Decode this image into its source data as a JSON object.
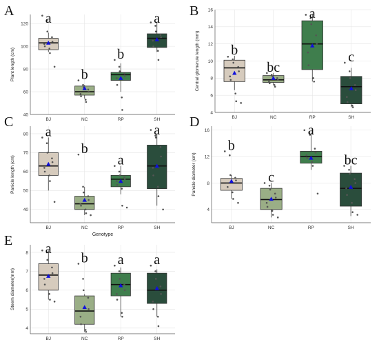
{
  "palette": {
    "BJ": "#d6cbbd",
    "NC": "#9aae86",
    "RP": "#3f7e4d",
    "SH": "#2a4d3c",
    "mean_marker": "#1010dd"
  },
  "chart_data": [
    {
      "panel": "A",
      "type": "box",
      "ylabel": "Plant length (cm)",
      "xlabel": "",
      "ylim": [
        40,
        128
      ],
      "yticks": [
        40,
        60,
        80,
        100,
        120
      ],
      "categories": [
        "BJ",
        "NC",
        "RP",
        "SH"
      ],
      "boxes": [
        {
          "group": "BJ",
          "min": 95,
          "q1": 97,
          "median": 103,
          "q3": 107,
          "max": 112,
          "mean": 103,
          "letter": "a",
          "points": [
            127,
            123,
            113,
            108,
            104,
            102,
            100,
            98,
            94,
            82
          ]
        },
        {
          "group": "NC",
          "min": 54,
          "q1": 57,
          "median": 60,
          "q3": 65,
          "max": 66,
          "mean": 63,
          "letter": "b",
          "points": [
            70,
            66,
            64,
            62,
            60,
            58,
            56,
            53,
            51
          ]
        },
        {
          "group": "RP",
          "min": 60,
          "q1": 70,
          "median": 75,
          "q3": 77,
          "max": 85,
          "mean": 72,
          "letter": "b",
          "points": [
            88,
            82,
            78,
            76,
            74,
            72,
            66,
            55,
            44
          ]
        },
        {
          "group": "SH",
          "min": 95,
          "q1": 99,
          "median": 107,
          "q3": 111,
          "max": 121,
          "mean": 106,
          "letter": "a",
          "points": [
            121,
            118,
            113,
            110,
            108,
            105,
            100,
            96,
            88
          ]
        }
      ]
    },
    {
      "panel": "B",
      "type": "box",
      "ylabel": "Central glomerule length (mm)",
      "xlabel": "",
      "ylim": [
        4,
        16
      ],
      "yticks": [
        4,
        6,
        8,
        10,
        12,
        14,
        16
      ],
      "categories": [
        "BJ",
        "NC",
        "RP",
        "SH"
      ],
      "boxes": [
        {
          "group": "BJ",
          "min": 6.6,
          "q1": 7.6,
          "median": 9.2,
          "q3": 10.1,
          "max": 10.6,
          "mean": 8.6,
          "letter": "b",
          "points": [
            10.5,
            10.2,
            9.8,
            9.3,
            8.8,
            8.2,
            7.8,
            6.2,
            5.3,
            5.1
          ]
        },
        {
          "group": "NC",
          "min": 7.2,
          "q1": 7.5,
          "median": 7.8,
          "q3": 8.3,
          "max": 8.6,
          "mean": 8.0,
          "letter": "bc",
          "points": [
            8.6,
            8.4,
            8.2,
            8.0,
            7.8,
            7.6,
            7.4,
            7.2,
            7.0
          ]
        },
        {
          "group": "RP",
          "min": 7.6,
          "q1": 9.0,
          "median": 12.0,
          "q3": 14.7,
          "max": 15.5,
          "mean": 11.8,
          "letter": "a",
          "points": [
            15.4,
            15.0,
            14.3,
            13.0,
            12.0,
            11.0,
            9.5,
            8.0,
            7.6
          ]
        },
        {
          "group": "SH",
          "min": 4.6,
          "q1": 5.0,
          "median": 7.0,
          "q3": 8.2,
          "max": 9.2,
          "mean": 6.8,
          "letter": "c",
          "points": [
            9.8,
            8.8,
            8.0,
            7.2,
            6.6,
            5.8,
            5.2,
            4.8,
            4.6
          ]
        }
      ]
    },
    {
      "panel": "C",
      "type": "box",
      "ylabel": "Panicle length (cm)",
      "xlabel": "Genotype",
      "ylim": [
        33,
        84
      ],
      "yticks": [
        40,
        50,
        60,
        70,
        80
      ],
      "categories": [
        "BJ",
        "NC",
        "RP",
        "SH"
      ],
      "boxes": [
        {
          "group": "BJ",
          "min": 50,
          "q1": 58,
          "median": 63,
          "q3": 70,
          "max": 78,
          "mean": 64,
          "letter": "a",
          "points": [
            78,
            75,
            70,
            67,
            65,
            62,
            60,
            58,
            55,
            44
          ]
        },
        {
          "group": "NC",
          "min": 37,
          "q1": 40,
          "median": 43,
          "q3": 47,
          "max": 52,
          "mean": 45,
          "letter": "b",
          "points": [
            69,
            52,
            49,
            47,
            45,
            43,
            42,
            40,
            38,
            37
          ]
        },
        {
          "group": "RP",
          "min": 48,
          "q1": 52,
          "median": 56,
          "q3": 58,
          "max": 63,
          "mean": 55,
          "letter": "a",
          "points": [
            63,
            60,
            58,
            57,
            56,
            55,
            53,
            51,
            42,
            41
          ]
        },
        {
          "group": "SH",
          "min": 42,
          "q1": 51,
          "median": 63,
          "q3": 74,
          "max": 80,
          "mean": 63,
          "letter": "a",
          "points": [
            82,
            79,
            78,
            73,
            68,
            62,
            58,
            52,
            47,
            40
          ]
        }
      ]
    },
    {
      "panel": "D",
      "type": "box",
      "ylabel": "Panicle diameter (cm)",
      "xlabel": "",
      "ylim": [
        2,
        16.6
      ],
      "yticks": [
        4,
        8,
        12,
        16
      ],
      "categories": [
        "BJ",
        "NC",
        "RP",
        "SH"
      ],
      "boxes": [
        {
          "group": "BJ",
          "min": 5.6,
          "q1": 6.9,
          "median": 8.0,
          "q3": 8.7,
          "max": 9.2,
          "mean": 8.3,
          "letter": "b",
          "points": [
            12.8,
            12.2,
            9.2,
            8.8,
            8.4,
            8.0,
            7.4,
            6.6,
            5.6,
            5.0
          ]
        },
        {
          "group": "NC",
          "min": 2.8,
          "q1": 4.0,
          "median": 5.5,
          "q3": 7.2,
          "max": 8.0,
          "mean": 5.6,
          "letter": "c",
          "points": [
            8.0,
            7.6,
            7.0,
            6.4,
            5.8,
            5.0,
            4.4,
            3.8,
            3.2,
            2.8
          ]
        },
        {
          "group": "RP",
          "min": 10.0,
          "q1": 11.0,
          "median": 12.0,
          "q3": 12.8,
          "max": 15.6,
          "mean": 11.8,
          "letter": "a",
          "points": [
            16.0,
            15.6,
            15.3,
            13.2,
            12.6,
            12.2,
            11.8,
            11.2,
            10.6,
            6.4
          ]
        },
        {
          "group": "SH",
          "min": 3.0,
          "q1": 4.5,
          "median": 7.2,
          "q3": 9.5,
          "max": 10.6,
          "mean": 7.4,
          "letter": "bc",
          "points": [
            10.6,
            10.0,
            9.4,
            8.6,
            8.0,
            7.2,
            6.2,
            5.0,
            3.6,
            3.2
          ]
        }
      ]
    },
    {
      "panel": "E",
      "type": "box",
      "ylabel": "Steem diameter(mm)",
      "xlabel": "",
      "ylim": [
        3.7,
        8.4
      ],
      "yticks": [
        4,
        5,
        6,
        7,
        8
      ],
      "categories": [
        "BJ",
        "NC",
        "RP",
        "SH"
      ],
      "boxes": [
        {
          "group": "BJ",
          "min": 5.5,
          "q1": 6.0,
          "median": 6.8,
          "q3": 7.4,
          "max": 8.1,
          "mean": 6.75,
          "letter": "a",
          "points": [
            8.1,
            8.0,
            7.6,
            7.2,
            6.9,
            6.6,
            6.3,
            5.8,
            5.5,
            5.4
          ]
        },
        {
          "group": "NC",
          "min": 3.8,
          "q1": 4.2,
          "median": 4.9,
          "q3": 5.7,
          "max": 5.8,
          "mean": 5.1,
          "letter": "b",
          "points": [
            7.4,
            6.6,
            6.0,
            5.6,
            5.0,
            4.6,
            4.2,
            3.9,
            3.8
          ]
        },
        {
          "group": "RP",
          "min": 4.6,
          "q1": 5.7,
          "median": 6.3,
          "q3": 6.9,
          "max": 7.2,
          "mean": 6.25,
          "letter": "a",
          "points": [
            7.3,
            7.0,
            6.6,
            6.3,
            6.0,
            5.8,
            5.5,
            4.8,
            4.6
          ]
        },
        {
          "group": "SH",
          "min": 4.6,
          "q1": 5.3,
          "median": 6.0,
          "q3": 6.9,
          "max": 7.1,
          "mean": 6.1,
          "letter": "a",
          "points": [
            7.3,
            7.0,
            6.6,
            6.2,
            5.8,
            5.4,
            5.0,
            4.6,
            4.1
          ]
        }
      ]
    }
  ]
}
